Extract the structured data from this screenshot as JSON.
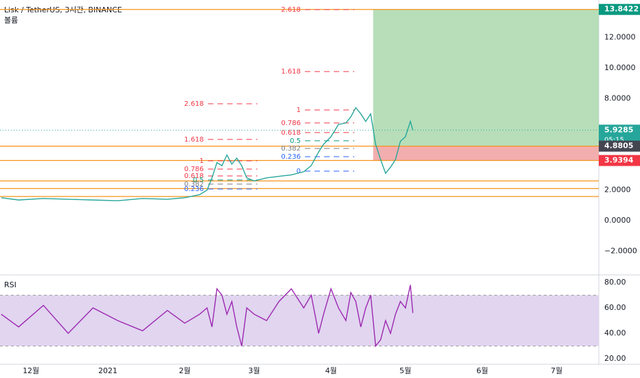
{
  "chart_data": [
    {
      "type": "line",
      "title": "Lisk / TetherUS, 3시간, BINANCE",
      "subtitle": "볼륨",
      "x": [
        -12,
        -5,
        5,
        15,
        25,
        35,
        45,
        55,
        62,
        68,
        71,
        73,
        75,
        77,
        79,
        81,
        83,
        85,
        87,
        90,
        95,
        100,
        105,
        110,
        113,
        116,
        118,
        121,
        124,
        127,
        129,
        131,
        133,
        135,
        137,
        139,
        141,
        143,
        145,
        147,
        149,
        151,
        153,
        154
      ],
      "values": [
        1.5,
        1.35,
        1.45,
        1.4,
        1.35,
        1.3,
        1.45,
        1.4,
        1.5,
        1.7,
        2.0,
        2.8,
        3.8,
        3.6,
        4.3,
        3.7,
        4.1,
        3.6,
        2.8,
        2.6,
        2.8,
        2.9,
        3.0,
        3.2,
        3.6,
        4.5,
        5.0,
        5.5,
        6.3,
        6.4,
        6.8,
        7.4,
        7.0,
        6.5,
        7.0,
        5.0,
        4.0,
        3.1,
        3.5,
        4.0,
        5.2,
        5.5,
        6.5,
        5.93
      ],
      "color": "#26a69a",
      "xlim": [
        -12.5,
        229
      ],
      "ylim": [
        -3.56,
        14.46
      ],
      "yticks": [
        {
          "value": 12,
          "label": "12.0000"
        },
        {
          "value": 10,
          "label": "10.0000"
        },
        {
          "value": 8,
          "label": "8.0000"
        },
        {
          "value": 2,
          "label": "2.0000"
        },
        {
          "value": 0,
          "label": "0.0000"
        },
        {
          "value": -2,
          "label": "−2.0000"
        }
      ],
      "levels": [
        13.8422,
        4.8805,
        3.9394,
        2.6,
        2.1,
        1.58
      ],
      "level_color": "#f7931a",
      "zones": [
        {
          "x": 138,
          "from": 4.8805,
          "to": 13.8422,
          "color": "#a5d6a7"
        },
        {
          "x": 138,
          "from": 3.9394,
          "to": 4.8805,
          "color": "#ef9a9a"
        }
      ],
      "tags": [
        {
          "value": 13.8422,
          "color": "#089981"
        },
        {
          "value": 5.9285,
          "color": "#26a69a",
          "sub": "05:15"
        },
        {
          "value": 4.8805,
          "color": "#434651"
        },
        {
          "value": 3.9394,
          "color": "#f23645"
        }
      ],
      "fibs": [
        {
          "x": 69.7,
          "levels": [
            {
              "label": "1",
              "price": 3.92,
              "color": "#f23645"
            },
            {
              "label": "0.786",
              "price": 3.38,
              "color": "#f23645"
            },
            {
              "label": "0.618",
              "price": 2.93,
              "color": "#f23645"
            },
            {
              "label": "0.5",
              "price": 2.66,
              "color": "#089981"
            },
            {
              "label": "0.382",
              "price": 2.39,
              "color": "#787b86"
            },
            {
              "label": "0.236",
              "price": 2.07,
              "color": "#2962ff"
            }
          ]
        },
        {
          "x": 69.7,
          "levels": [
            {
              "label": "2.618",
              "price": 7.66,
              "color": "#f23645"
            },
            {
              "label": "1.618",
              "price": 5.32,
              "color": "#f23645"
            }
          ]
        },
        {
          "x": 108.8,
          "levels": [
            {
              "label": "1",
              "price": 7.25,
              "color": "#f23645"
            },
            {
              "label": "0.786",
              "price": 6.4,
              "color": "#f23645"
            },
            {
              "label": "0.618",
              "price": 5.77,
              "color": "#f23645"
            },
            {
              "label": "0.5",
              "price": 5.23,
              "color": "#089981"
            },
            {
              "label": "0.382",
              "price": 4.73,
              "color": "#787b86"
            },
            {
              "label": "0.236",
              "price": 4.19,
              "color": "#2962ff"
            },
            {
              "label": "0",
              "price": 3.24,
              "color": "#2962ff"
            }
          ]
        },
        {
          "x": 108.8,
          "levels": [
            {
              "label": "2.618",
              "price": 13.83,
              "color": "#f23645"
            },
            {
              "label": "1.618",
              "price": 9.77,
              "color": "#f23645"
            }
          ]
        }
      ]
    },
    {
      "type": "line",
      "title": "RSI",
      "x": [
        -12,
        -5,
        5,
        15,
        25,
        35,
        45,
        55,
        62,
        68,
        71,
        73,
        75,
        77,
        79,
        81,
        83,
        85,
        87,
        90,
        95,
        100,
        105,
        110,
        113,
        116,
        118,
        121,
        124,
        127,
        129,
        131,
        133,
        135,
        137,
        139,
        141,
        143,
        145,
        147,
        149,
        151,
        153,
        154
      ],
      "values": [
        55,
        45,
        62,
        40,
        60,
        50,
        42,
        58,
        48,
        55,
        60,
        45,
        75,
        70,
        55,
        65,
        45,
        30,
        60,
        55,
        50,
        65,
        75,
        60,
        70,
        40,
        55,
        75,
        60,
        50,
        72,
        65,
        45,
        60,
        70,
        30,
        35,
        50,
        40,
        55,
        65,
        60,
        78,
        56
      ],
      "color": "#9c27b0",
      "band": [
        30,
        70
      ],
      "band_color": "#e1d5f0",
      "xlim": [
        -12.5,
        229
      ],
      "ylim": [
        15.7,
        85.9
      ],
      "yticks": [
        {
          "value": 80,
          "label": "80.00"
        },
        {
          "value": 60,
          "label": "60.00"
        },
        {
          "value": 40,
          "label": "40.00"
        },
        {
          "value": 20,
          "label": "20.00"
        }
      ],
      "xticks": [
        {
          "value": 0,
          "label": "12월"
        },
        {
          "value": 31,
          "label": "2021"
        },
        {
          "value": 62,
          "label": "2월"
        },
        {
          "value": 90,
          "label": "3월"
        },
        {
          "value": 121,
          "label": "4월"
        },
        {
          "value": 151,
          "label": "5월"
        },
        {
          "value": 182,
          "label": "6월"
        },
        {
          "value": 212,
          "label": "7월"
        }
      ]
    }
  ]
}
